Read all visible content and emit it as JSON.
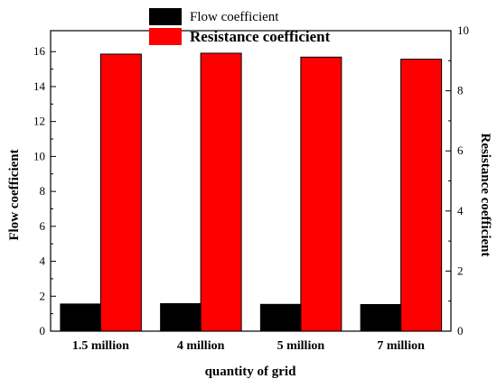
{
  "chart_data": {
    "type": "bar",
    "categories": [
      "1.5 million",
      "4 million",
      "5 million",
      "7 million"
    ],
    "series": [
      {
        "name": "Flow coefficient",
        "axis": "left",
        "color": "#000000",
        "values": [
          1.58,
          1.6,
          1.56,
          1.55
        ]
      },
      {
        "name": "Resistance coefficient",
        "axis": "right",
        "color": "#ff0000",
        "values": [
          9.22,
          9.25,
          9.12,
          9.05
        ]
      }
    ],
    "xlabel": "quantity of grid",
    "ylabel": "Flow coefficient",
    "y2label": "Resistance coefficient",
    "ylim": [
      0,
      17.2
    ],
    "y2lim": [
      0,
      10
    ],
    "yticks": [
      0,
      2,
      4,
      6,
      8,
      10,
      12,
      14,
      16
    ],
    "y2ticks": [
      0,
      2,
      4,
      6,
      8,
      10
    ],
    "grid": false,
    "legend_placement": "top-center"
  }
}
